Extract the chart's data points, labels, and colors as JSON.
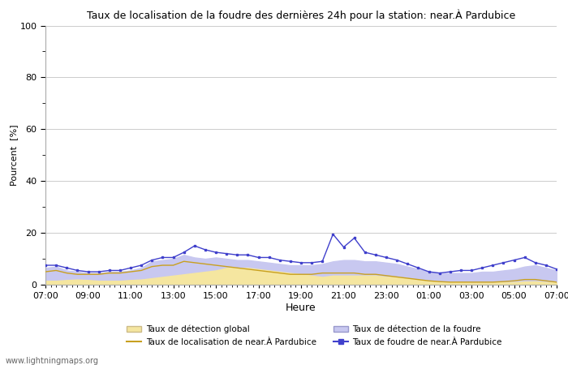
{
  "title": "Taux de localisation de la foudre des dernières 24h pour la station: near.À Pardubice",
  "xlabel": "Heure",
  "ylabel": "Pourcent  [%]",
  "xlim": [
    0,
    48
  ],
  "ylim": [
    0,
    100
  ],
  "yticks": [
    0,
    20,
    40,
    60,
    80,
    100
  ],
  "xtick_labels": [
    "07:00",
    "09:00",
    "11:00",
    "13:00",
    "15:00",
    "17:00",
    "19:00",
    "21:00",
    "23:00",
    "01:00",
    "03:00",
    "05:00",
    "07:00"
  ],
  "xtick_positions": [
    0,
    4,
    8,
    12,
    16,
    20,
    24,
    28,
    32,
    36,
    40,
    44,
    48
  ],
  "watermark": "www.lightningmaps.org",
  "color_global_fill": "#f5e6a0",
  "color_global_line": "#c8a020",
  "color_foudre_fill": "#c8c8f0",
  "color_foudre_line": "#4040cc",
  "series_global_detect": [
    1.5,
    1.5,
    1.8,
    2.0,
    1.8,
    1.5,
    1.5,
    1.5,
    1.8,
    2.0,
    2.5,
    3.0,
    3.5,
    4.0,
    4.5,
    5.0,
    5.5,
    6.5,
    6.5,
    6.5,
    6.0,
    5.5,
    5.0,
    4.5,
    4.0,
    3.5,
    3.0,
    3.5,
    3.5,
    3.5,
    3.5,
    3.5,
    3.0,
    3.0,
    2.5,
    2.0,
    1.5,
    1.2,
    1.0,
    1.0,
    0.8,
    0.8,
    0.8,
    0.9,
    1.0,
    1.2,
    1.3,
    1.0,
    0.8
  ],
  "series_localisation_near": [
    5.0,
    5.5,
    4.5,
    4.0,
    4.0,
    4.0,
    4.5,
    4.5,
    5.0,
    5.5,
    7.0,
    7.5,
    7.5,
    9.0,
    8.5,
    8.0,
    7.5,
    7.0,
    6.5,
    6.0,
    5.5,
    5.0,
    4.5,
    4.0,
    4.0,
    4.0,
    4.5,
    4.5,
    4.5,
    4.5,
    4.0,
    4.0,
    3.5,
    3.0,
    2.5,
    2.0,
    1.5,
    1.2,
    1.0,
    1.0,
    1.0,
    1.0,
    1.0,
    1.2,
    1.5,
    2.0,
    2.0,
    1.5,
    1.0
  ],
  "series_detect_foudre": [
    6.5,
    7.0,
    5.5,
    5.0,
    4.5,
    4.5,
    5.0,
    5.0,
    5.5,
    6.5,
    9.0,
    9.5,
    10.0,
    11.5,
    10.5,
    10.0,
    10.5,
    10.0,
    9.5,
    9.5,
    9.0,
    8.5,
    8.0,
    7.5,
    7.5,
    7.5,
    8.0,
    9.0,
    9.5,
    9.5,
    9.0,
    9.0,
    8.5,
    8.0,
    7.0,
    6.0,
    5.0,
    4.5,
    4.5,
    4.5,
    4.5,
    5.0,
    5.0,
    5.5,
    6.0,
    7.0,
    7.5,
    6.5,
    5.5
  ],
  "series_foudre_near": [
    7.5,
    7.5,
    6.5,
    5.5,
    5.0,
    5.0,
    5.5,
    5.5,
    6.5,
    7.5,
    9.5,
    10.5,
    10.5,
    12.5,
    15.0,
    13.5,
    12.5,
    12.0,
    11.5,
    11.5,
    10.5,
    10.5,
    9.5,
    9.0,
    8.5,
    8.5,
    9.0,
    19.5,
    14.5,
    18.0,
    12.5,
    11.5,
    10.5,
    9.5,
    8.0,
    6.5,
    5.0,
    4.5,
    5.0,
    5.5,
    5.5,
    6.5,
    7.5,
    8.5,
    9.5,
    10.5,
    8.5,
    7.5,
    6.0
  ]
}
